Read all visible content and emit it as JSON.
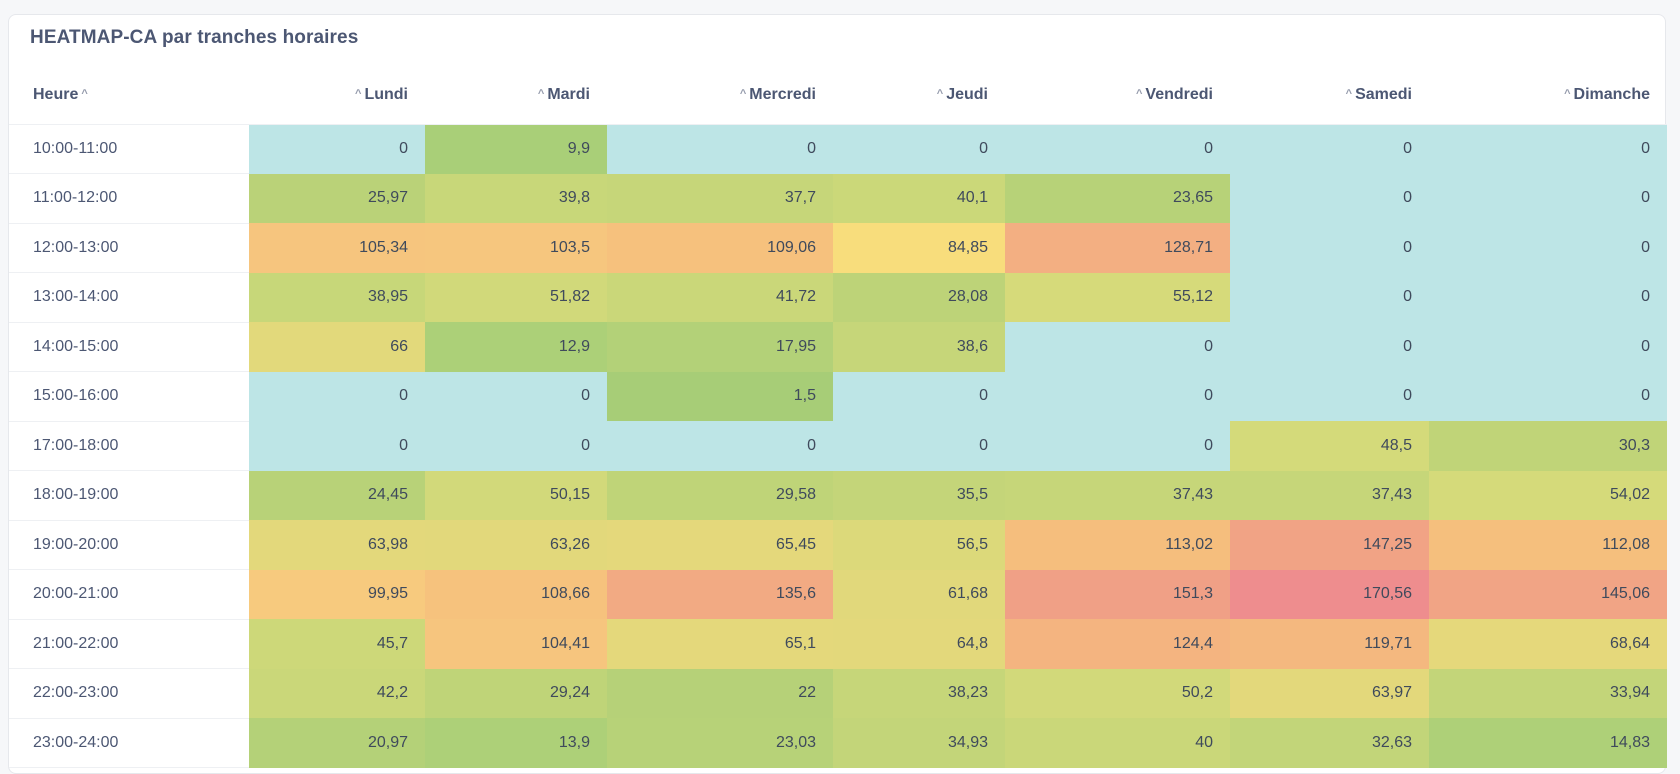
{
  "card": {
    "title": "HEATMAP-CA par tranches horaires"
  },
  "table": {
    "columns": [
      "Heure",
      "Lundi",
      "Mardi",
      "Mercredi",
      "Jeudi",
      "Vendredi",
      "Samedi",
      "Dimanche"
    ],
    "rows": [
      {
        "hour": "10:00-11:00",
        "cells": [
          {
            "text": "0",
            "color": "#bde5e6"
          },
          {
            "text": "9,9",
            "color": "#a9cf78"
          },
          {
            "text": "0",
            "color": "#bde5e6"
          },
          {
            "text": "0",
            "color": "#bde5e6"
          },
          {
            "text": "0",
            "color": "#bde5e6"
          },
          {
            "text": "0",
            "color": "#bde5e6"
          },
          {
            "text": "0",
            "color": "#bde5e6"
          }
        ]
      },
      {
        "hour": "11:00-12:00",
        "cells": [
          {
            "text": "25,97",
            "color": "#bad278"
          },
          {
            "text": "39,8",
            "color": "#c8d779"
          },
          {
            "text": "37,7",
            "color": "#c6d679"
          },
          {
            "text": "40,1",
            "color": "#cbd879"
          },
          {
            "text": "23,65",
            "color": "#b7d278"
          },
          {
            "text": "0",
            "color": "#bde5e6"
          },
          {
            "text": "0",
            "color": "#bde5e6"
          }
        ]
      },
      {
        "hour": "12:00-13:00",
        "cells": [
          {
            "text": "105,34",
            "color": "#f6c57e"
          },
          {
            "text": "103,5",
            "color": "#f6c67e"
          },
          {
            "text": "109,06",
            "color": "#f6c17d"
          },
          {
            "text": "84,85",
            "color": "#f8dd7c"
          },
          {
            "text": "128,71",
            "color": "#f3af82"
          },
          {
            "text": "0",
            "color": "#bde5e6"
          },
          {
            "text": "0",
            "color": "#bde5e6"
          }
        ]
      },
      {
        "hour": "13:00-14:00",
        "cells": [
          {
            "text": "38,95",
            "color": "#c7d779"
          },
          {
            "text": "51,82",
            "color": "#d1d97a"
          },
          {
            "text": "41,72",
            "color": "#cad779"
          },
          {
            "text": "28,08",
            "color": "#bdd378"
          },
          {
            "text": "55,12",
            "color": "#d6da7a"
          },
          {
            "text": "0",
            "color": "#bde5e6"
          },
          {
            "text": "0",
            "color": "#bde5e6"
          }
        ]
      },
      {
        "hour": "14:00-15:00",
        "cells": [
          {
            "text": "66",
            "color": "#e2d97b"
          },
          {
            "text": "12,9",
            "color": "#acd078"
          },
          {
            "text": "17,95",
            "color": "#b3d178"
          },
          {
            "text": "38,6",
            "color": "#c6d679"
          },
          {
            "text": "0",
            "color": "#bde5e6"
          },
          {
            "text": "0",
            "color": "#bde5e6"
          },
          {
            "text": "0",
            "color": "#bde5e6"
          }
        ]
      },
      {
        "hour": "15:00-16:00",
        "cells": [
          {
            "text": "0",
            "color": "#bde5e6"
          },
          {
            "text": "0",
            "color": "#bde5e6"
          },
          {
            "text": "1,5",
            "color": "#a7cd77"
          },
          {
            "text": "0",
            "color": "#bde5e6"
          },
          {
            "text": "0",
            "color": "#bde5e6"
          },
          {
            "text": "0",
            "color": "#bde5e6"
          },
          {
            "text": "0",
            "color": "#bde5e6"
          }
        ]
      },
      {
        "hour": "17:00-18:00",
        "cells": [
          {
            "text": "0",
            "color": "#bde5e6"
          },
          {
            "text": "0",
            "color": "#bde5e6"
          },
          {
            "text": "0",
            "color": "#bde5e6"
          },
          {
            "text": "0",
            "color": "#bde5e6"
          },
          {
            "text": "0",
            "color": "#bde5e6"
          },
          {
            "text": "48,5",
            "color": "#d4da7a"
          },
          {
            "text": "30,3",
            "color": "#c0d478"
          }
        ]
      },
      {
        "hour": "18:00-19:00",
        "cells": [
          {
            "text": "24,45",
            "color": "#b8d278"
          },
          {
            "text": "50,15",
            "color": "#d2d97a"
          },
          {
            "text": "29,58",
            "color": "#bfd478"
          },
          {
            "text": "35,5",
            "color": "#c4d579"
          },
          {
            "text": "37,43",
            "color": "#c6d679"
          },
          {
            "text": "37,43",
            "color": "#c6d679"
          },
          {
            "text": "54,02",
            "color": "#d5da7a"
          }
        ]
      },
      {
        "hour": "19:00-20:00",
        "cells": [
          {
            "text": "63,98",
            "color": "#e3d87b"
          },
          {
            "text": "63,26",
            "color": "#e2d87b"
          },
          {
            "text": "65,45",
            "color": "#e4d87b"
          },
          {
            "text": "56,5",
            "color": "#dcd97a"
          },
          {
            "text": "113,02",
            "color": "#f5be7d"
          },
          {
            "text": "147,25",
            "color": "#f1a385"
          },
          {
            "text": "112,08",
            "color": "#f5bf7d"
          }
        ]
      },
      {
        "hour": "20:00-21:00",
        "cells": [
          {
            "text": "99,95",
            "color": "#f7ca7e"
          },
          {
            "text": "108,66",
            "color": "#f6c27d"
          },
          {
            "text": "135,6",
            "color": "#f2aa83"
          },
          {
            "text": "61,68",
            "color": "#e1d87b"
          },
          {
            "text": "151,3",
            "color": "#f0a086"
          },
          {
            "text": "170,56",
            "color": "#ee8d8e"
          },
          {
            "text": "145,06",
            "color": "#f1a485"
          }
        ]
      },
      {
        "hour": "21:00-22:00",
        "cells": [
          {
            "text": "45,7",
            "color": "#cdd879"
          },
          {
            "text": "104,41",
            "color": "#f6c57e"
          },
          {
            "text": "65,1",
            "color": "#e4d87b"
          },
          {
            "text": "64,8",
            "color": "#e3d87b"
          },
          {
            "text": "124,4",
            "color": "#f4b480"
          },
          {
            "text": "119,71",
            "color": "#f4b87f"
          },
          {
            "text": "68,64",
            "color": "#e5d87b"
          }
        ]
      },
      {
        "hour": "22:00-23:00",
        "cells": [
          {
            "text": "42,2",
            "color": "#cad779"
          },
          {
            "text": "29,24",
            "color": "#bfd478"
          },
          {
            "text": "22",
            "color": "#b6d178"
          },
          {
            "text": "38,23",
            "color": "#c6d679"
          },
          {
            "text": "50,2",
            "color": "#d2d97a"
          },
          {
            "text": "63,97",
            "color": "#e3d87b"
          },
          {
            "text": "33,94",
            "color": "#c3d579"
          }
        ]
      },
      {
        "hour": "23:00-24:00",
        "cells": [
          {
            "text": "20,97",
            "color": "#b4d178"
          },
          {
            "text": "13,9",
            "color": "#add078"
          },
          {
            "text": "23,03",
            "color": "#b7d278"
          },
          {
            "text": "34,93",
            "color": "#c3d579"
          },
          {
            "text": "40",
            "color": "#cad779"
          },
          {
            "text": "32,63",
            "color": "#c2d579"
          },
          {
            "text": "14,83",
            "color": "#aed078"
          }
        ]
      }
    ]
  }
}
